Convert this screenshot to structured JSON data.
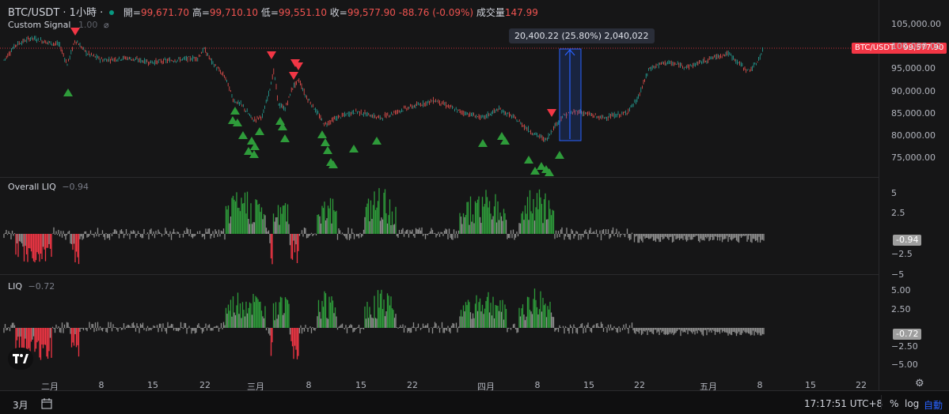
{
  "header": {
    "symbol": "BTC/USDT · 1小時 ·",
    "open_label": "開=",
    "open": "99,671.70",
    "high_label": "高=",
    "high": "99,710.10",
    "low_label": "低=",
    "low": "99,551.10",
    "close_label": "收=",
    "close": "99,577.90",
    "change": "-88.76 (-0.09%)",
    "volume_label": "成交量",
    "volume": "147.99"
  },
  "indicator1": {
    "name": "Custom Signal",
    "value": "1.00",
    "icon": "hidden-eye-icon"
  },
  "pane2": {
    "name": "Overall LIQ",
    "value": "−0.94",
    "tag": "-0.94"
  },
  "pane3": {
    "name": "LIQ",
    "value": "−0.72",
    "tag": "-0.72"
  },
  "price_tag": {
    "label": "BTC/USDT",
    "value": "99,577.90"
  },
  "measure_tooltip": "20,400.22 (25.80%) 2,040,022",
  "price_axis": [
    "105,000.00",
    "100,000.00",
    "95,000.00",
    "90,000.00",
    "85,000.00",
    "80,000.00",
    "75,000.00"
  ],
  "price_axis_values": [
    105000,
    100000,
    95000,
    90000,
    85000,
    80000,
    75000
  ],
  "liq_axis": [
    "5",
    "2.5",
    "0",
    "−2.5",
    "−5"
  ],
  "liq_axis_values": [
    5,
    2.5,
    0,
    -2.5,
    -5
  ],
  "liq2_axis": [
    "5.00",
    "2.50",
    "0.00",
    "−2.50",
    "−5.00"
  ],
  "liq2_axis_values": [
    5,
    2.5,
    0,
    -2.5,
    -5
  ],
  "time_axis": [
    "二月",
    "8",
    "15",
    "22",
    "三月",
    "8",
    "15",
    "22",
    "四月",
    "8",
    "15",
    "22",
    "五月",
    "8",
    "15",
    "22"
  ],
  "bottom": {
    "range": "3月",
    "clock": "17:17:51 UTC+8",
    "percent": "%",
    "log": "log",
    "auto": "自動"
  },
  "colors": {
    "up": "#26a69a",
    "down": "#ef5350",
    "green_bar": "#2e9b3a",
    "red_bar": "#f23645",
    "gray_bar": "#8e8e8e",
    "measure": "#2962ff"
  }
}
